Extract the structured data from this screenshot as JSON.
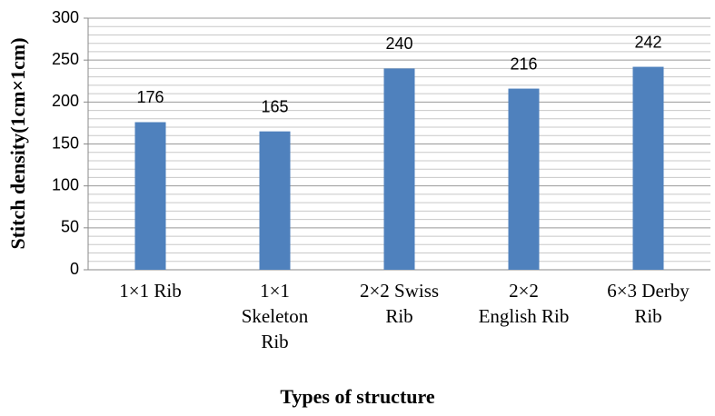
{
  "chart_data": {
    "type": "bar",
    "xlabel": "Types of structure",
    "ylabel": "Stitch density(1cm×1cm)",
    "categories": [
      "1×1 Rib",
      "1×1 Skeleton Rib",
      "2×2 Swiss Rib",
      "2×2 English Rib",
      "6×3 Derby Rib"
    ],
    "values": [
      176,
      165,
      240,
      216,
      242
    ],
    "color": "#4f81bd",
    "ylim": [
      0,
      300
    ],
    "yticks": [
      0,
      50,
      100,
      150,
      200,
      250,
      300
    ],
    "yminor": [
      10,
      20,
      30,
      40,
      60,
      70,
      80,
      90,
      110,
      120,
      130,
      140,
      160,
      170,
      180,
      190,
      210,
      220,
      230,
      240,
      260,
      270,
      280,
      290
    ],
    "grid": true
  }
}
